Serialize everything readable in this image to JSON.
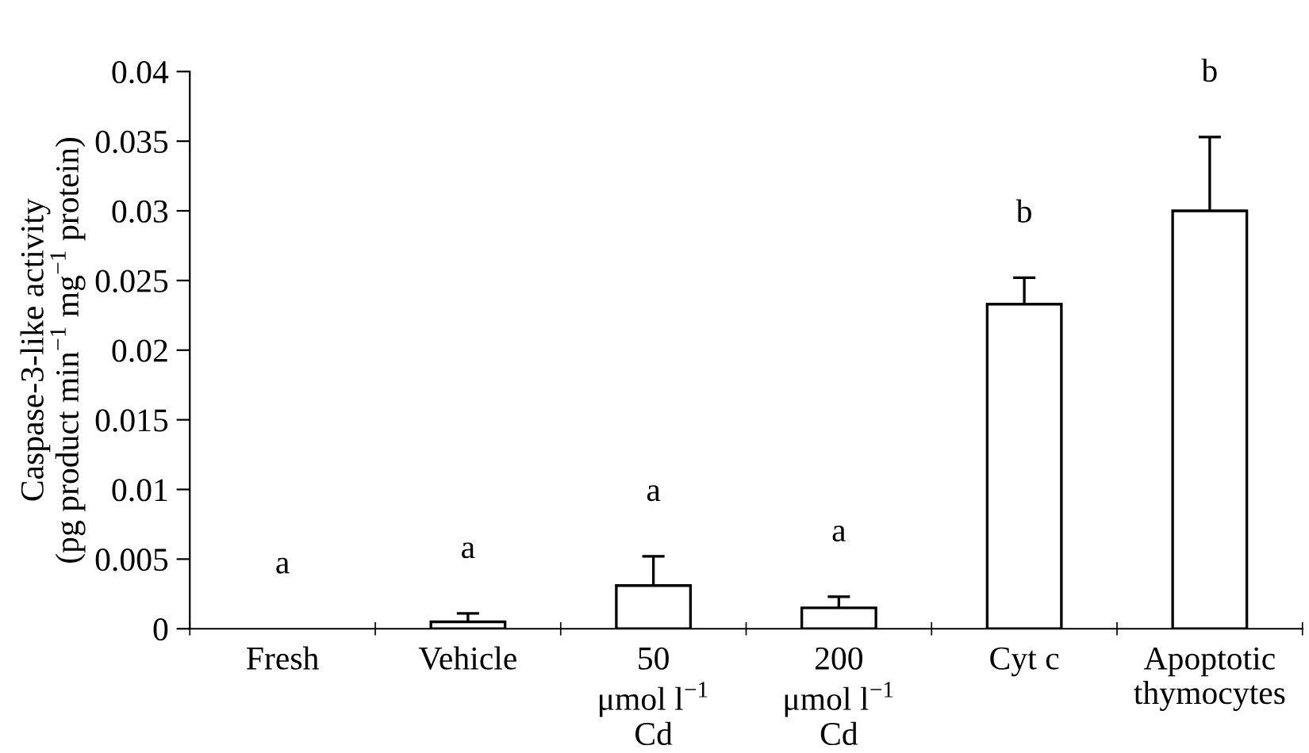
{
  "chart_data": {
    "type": "bar",
    "ylabel": "Caspase-3-like activity\n(pg product min$^{−1}$ mg$^{−1}$ protein)",
    "categories": [
      "Fresh",
      "Vehicle",
      "50\nμmol l$^{−1}$\nCd",
      "200\nμmol l$^{−1}$\nCd",
      "Cyt c",
      "Apoptotic\nthymocytes"
    ],
    "values": [
      0,
      0.0005,
      0.0031,
      0.0015,
      0.0233,
      0.03
    ],
    "errors": [
      null,
      [
        0.0005,
        0.0011
      ],
      [
        0.0031,
        0.0052
      ],
      [
        0.0015,
        0.0023
      ],
      [
        0.0233,
        0.0252
      ],
      [
        0.03,
        0.0353
      ]
    ],
    "color": "#ffffff",
    "ylim": [
      0,
      0.04
    ],
    "yticks": [
      0,
      0.005,
      0.01,
      0.015,
      0.02,
      0.025,
      0.03,
      0.035,
      0.04
    ],
    "grid": false,
    "annotations": [
      "a",
      "a",
      "a",
      "a",
      "b",
      "b"
    ]
  }
}
